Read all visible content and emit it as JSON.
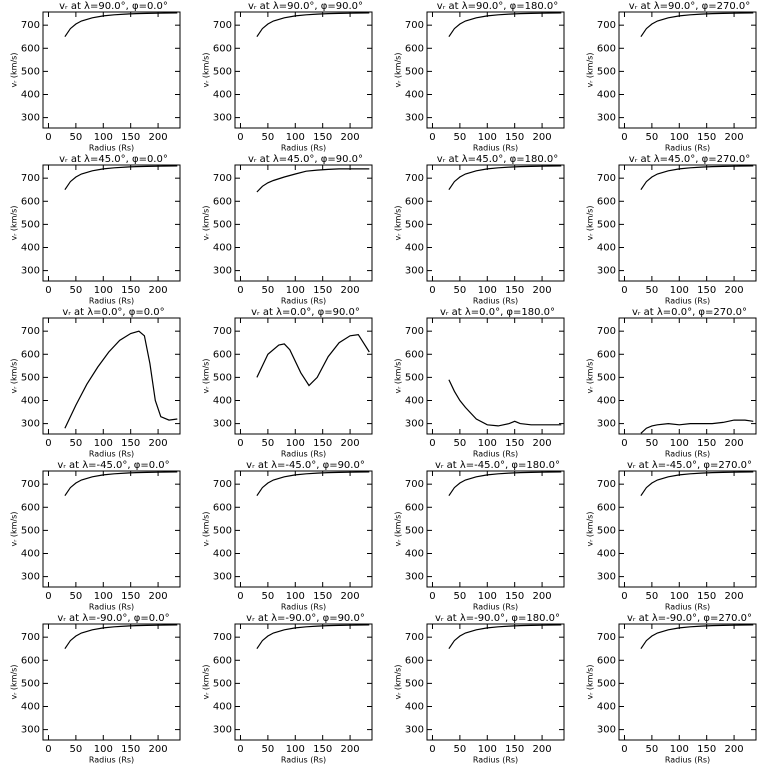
{
  "chart_data": [
    {
      "type": "line",
      "title": "vᵣ at λ=90.0°, φ=0.0°",
      "xlabel": "Radius (Rs)",
      "ylabel": "vᵣ (km/s)",
      "x": [
        30,
        40,
        50,
        60,
        80,
        100,
        120,
        140,
        160,
        180,
        200,
        235
      ],
      "values": [
        650,
        685,
        705,
        718,
        732,
        740,
        745,
        748,
        750,
        751,
        752,
        753
      ],
      "color": "#000000",
      "xlim": [
        -10,
        240
      ],
      "ylim": [
        255,
        757
      ],
      "xticks": [
        0,
        50,
        100,
        150,
        200
      ],
      "yticks": [
        300,
        400,
        500,
        600,
        700
      ]
    },
    {
      "type": "line",
      "title": "vᵣ at λ=90.0°, φ=90.0°",
      "xlabel": "Radius (Rs)",
      "ylabel": "vᵣ (km/s)",
      "x": [
        30,
        40,
        50,
        60,
        80,
        100,
        120,
        140,
        160,
        180,
        200,
        235
      ],
      "values": [
        650,
        685,
        705,
        718,
        732,
        740,
        745,
        748,
        750,
        751,
        752,
        753
      ],
      "color": "#000000",
      "xlim": [
        -10,
        240
      ],
      "ylim": [
        255,
        757
      ],
      "xticks": [
        0,
        50,
        100,
        150,
        200
      ],
      "yticks": [
        300,
        400,
        500,
        600,
        700
      ]
    },
    {
      "type": "line",
      "title": "vᵣ at λ=90.0°, φ=180.0°",
      "xlabel": "Radius (Rs)",
      "ylabel": "vᵣ (km/s)",
      "x": [
        30,
        40,
        50,
        60,
        80,
        100,
        120,
        140,
        160,
        180,
        200,
        235
      ],
      "values": [
        650,
        685,
        705,
        718,
        732,
        740,
        745,
        748,
        750,
        751,
        752,
        753
      ],
      "color": "#000000",
      "xlim": [
        -10,
        240
      ],
      "ylim": [
        255,
        757
      ],
      "xticks": [
        0,
        50,
        100,
        150,
        200
      ],
      "yticks": [
        300,
        400,
        500,
        600,
        700
      ]
    },
    {
      "type": "line",
      "title": "vᵣ at λ=90.0°, φ=270.0°",
      "xlabel": "Radius (Rs)",
      "ylabel": "vᵣ (km/s)",
      "x": [
        30,
        40,
        50,
        60,
        80,
        100,
        120,
        140,
        160,
        180,
        200,
        235
      ],
      "values": [
        650,
        685,
        705,
        718,
        732,
        740,
        745,
        748,
        750,
        751,
        752,
        753
      ],
      "color": "#000000",
      "xlim": [
        -10,
        240
      ],
      "ylim": [
        255,
        757
      ],
      "xticks": [
        0,
        50,
        100,
        150,
        200
      ],
      "yticks": [
        300,
        400,
        500,
        600,
        700
      ]
    },
    {
      "type": "line",
      "title": "vᵣ at λ=45.0°, φ=0.0°",
      "xlabel": "Radius (Rs)",
      "ylabel": "vᵣ (km/s)",
      "x": [
        30,
        40,
        50,
        60,
        80,
        100,
        120,
        140,
        160,
        180,
        200,
        235
      ],
      "values": [
        650,
        685,
        705,
        718,
        732,
        740,
        745,
        748,
        750,
        751,
        752,
        753
      ],
      "color": "#000000",
      "xlim": [
        -10,
        240
      ],
      "ylim": [
        255,
        757
      ],
      "xticks": [
        0,
        50,
        100,
        150,
        200
      ],
      "yticks": [
        300,
        400,
        500,
        600,
        700
      ]
    },
    {
      "type": "line",
      "title": "vᵣ at λ=45.0°, φ=90.0°",
      "xlabel": "Radius (Rs)",
      "ylabel": "vᵣ (km/s)",
      "x": [
        30,
        40,
        50,
        60,
        80,
        100,
        120,
        140,
        160,
        180,
        200,
        235
      ],
      "values": [
        640,
        665,
        680,
        690,
        705,
        718,
        730,
        735,
        738,
        740,
        740,
        740
      ],
      "color": "#000000",
      "xlim": [
        -10,
        240
      ],
      "ylim": [
        255,
        757
      ],
      "xticks": [
        0,
        50,
        100,
        150,
        200
      ],
      "yticks": [
        300,
        400,
        500,
        600,
        700
      ]
    },
    {
      "type": "line",
      "title": "vᵣ at λ=45.0°, φ=180.0°",
      "xlabel": "Radius (Rs)",
      "ylabel": "vᵣ (km/s)",
      "x": [
        30,
        40,
        50,
        60,
        80,
        100,
        120,
        140,
        160,
        180,
        200,
        235
      ],
      "values": [
        650,
        685,
        705,
        718,
        732,
        740,
        745,
        748,
        750,
        751,
        752,
        753
      ],
      "color": "#000000",
      "xlim": [
        -10,
        240
      ],
      "ylim": [
        255,
        757
      ],
      "xticks": [
        0,
        50,
        100,
        150,
        200
      ],
      "yticks": [
        300,
        400,
        500,
        600,
        700
      ]
    },
    {
      "type": "line",
      "title": "vᵣ at λ=45.0°, φ=270.0°",
      "xlabel": "Radius (Rs)",
      "ylabel": "vᵣ (km/s)",
      "x": [
        30,
        40,
        50,
        60,
        80,
        100,
        120,
        140,
        160,
        180,
        200,
        235
      ],
      "values": [
        650,
        685,
        705,
        718,
        732,
        740,
        745,
        748,
        750,
        751,
        752,
        753
      ],
      "color": "#000000",
      "xlim": [
        -10,
        240
      ],
      "ylim": [
        255,
        757
      ],
      "xticks": [
        0,
        50,
        100,
        150,
        200
      ],
      "yticks": [
        300,
        400,
        500,
        600,
        700
      ]
    },
    {
      "type": "line",
      "title": "vᵣ at λ=0.0°, φ=0.0°",
      "xlabel": "Radius (Rs)",
      "ylabel": "vᵣ (km/s)",
      "x": [
        30,
        50,
        70,
        90,
        110,
        130,
        150,
        165,
        175,
        185,
        195,
        205,
        220,
        235
      ],
      "values": [
        280,
        380,
        470,
        545,
        610,
        660,
        690,
        700,
        680,
        560,
        400,
        330,
        315,
        320
      ],
      "color": "#000000",
      "xlim": [
        -10,
        240
      ],
      "ylim": [
        255,
        757
      ],
      "xticks": [
        0,
        50,
        100,
        150,
        200
      ],
      "yticks": [
        300,
        400,
        500,
        600,
        700
      ]
    },
    {
      "type": "line",
      "title": "vᵣ at λ=0.0°, φ=90.0°",
      "xlabel": "Radius (Rs)",
      "ylabel": "vᵣ (km/s)",
      "x": [
        30,
        50,
        70,
        80,
        90,
        110,
        125,
        140,
        160,
        180,
        200,
        215,
        235
      ],
      "values": [
        500,
        600,
        640,
        645,
        620,
        520,
        465,
        500,
        590,
        650,
        680,
        685,
        610
      ],
      "color": "#000000",
      "xlim": [
        -10,
        240
      ],
      "ylim": [
        255,
        757
      ],
      "xticks": [
        0,
        50,
        100,
        150,
        200
      ],
      "yticks": [
        300,
        400,
        500,
        600,
        700
      ]
    },
    {
      "type": "line",
      "title": "vᵣ at λ=0.0°, φ=180.0°",
      "xlabel": "Radius (Rs)",
      "ylabel": "vᵣ (km/s)",
      "x": [
        30,
        40,
        50,
        60,
        80,
        100,
        120,
        140,
        150,
        160,
        180,
        200,
        235
      ],
      "values": [
        490,
        440,
        400,
        370,
        320,
        295,
        290,
        300,
        310,
        300,
        295,
        295,
        295
      ],
      "color": "#000000",
      "xlim": [
        -10,
        240
      ],
      "ylim": [
        255,
        757
      ],
      "xticks": [
        0,
        50,
        100,
        150,
        200
      ],
      "yticks": [
        300,
        400,
        500,
        600,
        700
      ]
    },
    {
      "type": "line",
      "title": "vᵣ at λ=0.0°, φ=270.0°",
      "xlabel": "Radius (Rs)",
      "ylabel": "vᵣ (km/s)",
      "x": [
        30,
        40,
        50,
        60,
        80,
        100,
        120,
        140,
        160,
        180,
        200,
        220,
        235
      ],
      "values": [
        258,
        280,
        290,
        295,
        300,
        295,
        300,
        300,
        300,
        305,
        315,
        315,
        310
      ],
      "color": "#000000",
      "xlim": [
        -10,
        240
      ],
      "ylim": [
        255,
        757
      ],
      "xticks": [
        0,
        50,
        100,
        150,
        200
      ],
      "yticks": [
        300,
        400,
        500,
        600,
        700
      ]
    },
    {
      "type": "line",
      "title": "vᵣ at λ=-45.0°, φ=0.0°",
      "xlabel": "Radius (Rs)",
      "ylabel": "vᵣ (km/s)",
      "x": [
        30,
        40,
        50,
        60,
        80,
        100,
        120,
        140,
        160,
        180,
        200,
        235
      ],
      "values": [
        650,
        685,
        705,
        718,
        732,
        740,
        745,
        748,
        750,
        751,
        752,
        753
      ],
      "color": "#000000",
      "xlim": [
        -10,
        240
      ],
      "ylim": [
        255,
        757
      ],
      "xticks": [
        0,
        50,
        100,
        150,
        200
      ],
      "yticks": [
        300,
        400,
        500,
        600,
        700
      ]
    },
    {
      "type": "line",
      "title": "vᵣ at λ=-45.0°, φ=90.0°",
      "xlabel": "Radius (Rs)",
      "ylabel": "vᵣ (km/s)",
      "x": [
        30,
        40,
        50,
        60,
        80,
        100,
        120,
        140,
        160,
        180,
        200,
        235
      ],
      "values": [
        650,
        685,
        705,
        718,
        732,
        740,
        745,
        748,
        750,
        751,
        752,
        753
      ],
      "color": "#000000",
      "xlim": [
        -10,
        240
      ],
      "ylim": [
        255,
        757
      ],
      "xticks": [
        0,
        50,
        100,
        150,
        200
      ],
      "yticks": [
        300,
        400,
        500,
        600,
        700
      ]
    },
    {
      "type": "line",
      "title": "vᵣ at λ=-45.0°, φ=180.0°",
      "xlabel": "Radius (Rs)",
      "ylabel": "vᵣ (km/s)",
      "x": [
        30,
        40,
        50,
        60,
        80,
        100,
        120,
        140,
        160,
        180,
        200,
        235
      ],
      "values": [
        650,
        685,
        705,
        718,
        732,
        740,
        745,
        748,
        750,
        751,
        752,
        753
      ],
      "color": "#000000",
      "xlim": [
        -10,
        240
      ],
      "ylim": [
        255,
        757
      ],
      "xticks": [
        0,
        50,
        100,
        150,
        200
      ],
      "yticks": [
        300,
        400,
        500,
        600,
        700
      ]
    },
    {
      "type": "line",
      "title": "vᵣ at λ=-45.0°, φ=270.0°",
      "xlabel": "Radius (Rs)",
      "ylabel": "vᵣ (km/s)",
      "x": [
        30,
        40,
        50,
        60,
        80,
        100,
        120,
        140,
        160,
        180,
        200,
        235
      ],
      "values": [
        650,
        685,
        705,
        718,
        732,
        740,
        745,
        748,
        750,
        751,
        752,
        753
      ],
      "color": "#000000",
      "xlim": [
        -10,
        240
      ],
      "ylim": [
        255,
        757
      ],
      "xticks": [
        0,
        50,
        100,
        150,
        200
      ],
      "yticks": [
        300,
        400,
        500,
        600,
        700
      ]
    },
    {
      "type": "line",
      "title": "vᵣ at λ=-90.0°, φ=0.0°",
      "xlabel": "Radius (Rs)",
      "ylabel": "vᵣ (km/s)",
      "x": [
        30,
        40,
        50,
        60,
        80,
        100,
        120,
        140,
        160,
        180,
        200,
        235
      ],
      "values": [
        650,
        685,
        705,
        718,
        732,
        740,
        745,
        748,
        750,
        751,
        752,
        753
      ],
      "color": "#000000",
      "xlim": [
        -10,
        240
      ],
      "ylim": [
        255,
        757
      ],
      "xticks": [
        0,
        50,
        100,
        150,
        200
      ],
      "yticks": [
        300,
        400,
        500,
        600,
        700
      ]
    },
    {
      "type": "line",
      "title": "vᵣ at λ=-90.0°, φ=90.0°",
      "xlabel": "Radius (Rs)",
      "ylabel": "vᵣ (km/s)",
      "x": [
        30,
        40,
        50,
        60,
        80,
        100,
        120,
        140,
        160,
        180,
        200,
        235
      ],
      "values": [
        650,
        685,
        705,
        718,
        732,
        740,
        745,
        748,
        750,
        751,
        752,
        753
      ],
      "color": "#000000",
      "xlim": [
        -10,
        240
      ],
      "ylim": [
        255,
        757
      ],
      "xticks": [
        0,
        50,
        100,
        150,
        200
      ],
      "yticks": [
        300,
        400,
        500,
        600,
        700
      ]
    },
    {
      "type": "line",
      "title": "vᵣ at λ=-90.0°, φ=180.0°",
      "xlabel": "Radius (Rs)",
      "ylabel": "vᵣ (km/s)",
      "x": [
        30,
        40,
        50,
        60,
        80,
        100,
        120,
        140,
        160,
        180,
        200,
        235
      ],
      "values": [
        650,
        685,
        705,
        718,
        732,
        740,
        745,
        748,
        750,
        751,
        752,
        753
      ],
      "color": "#000000",
      "xlim": [
        -10,
        240
      ],
      "ylim": [
        255,
        757
      ],
      "xticks": [
        0,
        50,
        100,
        150,
        200
      ],
      "yticks": [
        300,
        400,
        500,
        600,
        700
      ]
    },
    {
      "type": "line",
      "title": "vᵣ at λ=-90.0°, φ=270.0°",
      "xlabel": "Radius (Rs)",
      "ylabel": "vᵣ (km/s)",
      "x": [
        30,
        40,
        50,
        60,
        80,
        100,
        120,
        140,
        160,
        180,
        200,
        235
      ],
      "values": [
        650,
        685,
        705,
        718,
        732,
        740,
        745,
        748,
        750,
        751,
        752,
        753
      ],
      "color": "#000000",
      "xlim": [
        -10,
        240
      ],
      "ylim": [
        255,
        757
      ],
      "xticks": [
        0,
        50,
        100,
        150,
        200
      ],
      "yticks": [
        300,
        400,
        500,
        600,
        700
      ]
    }
  ]
}
